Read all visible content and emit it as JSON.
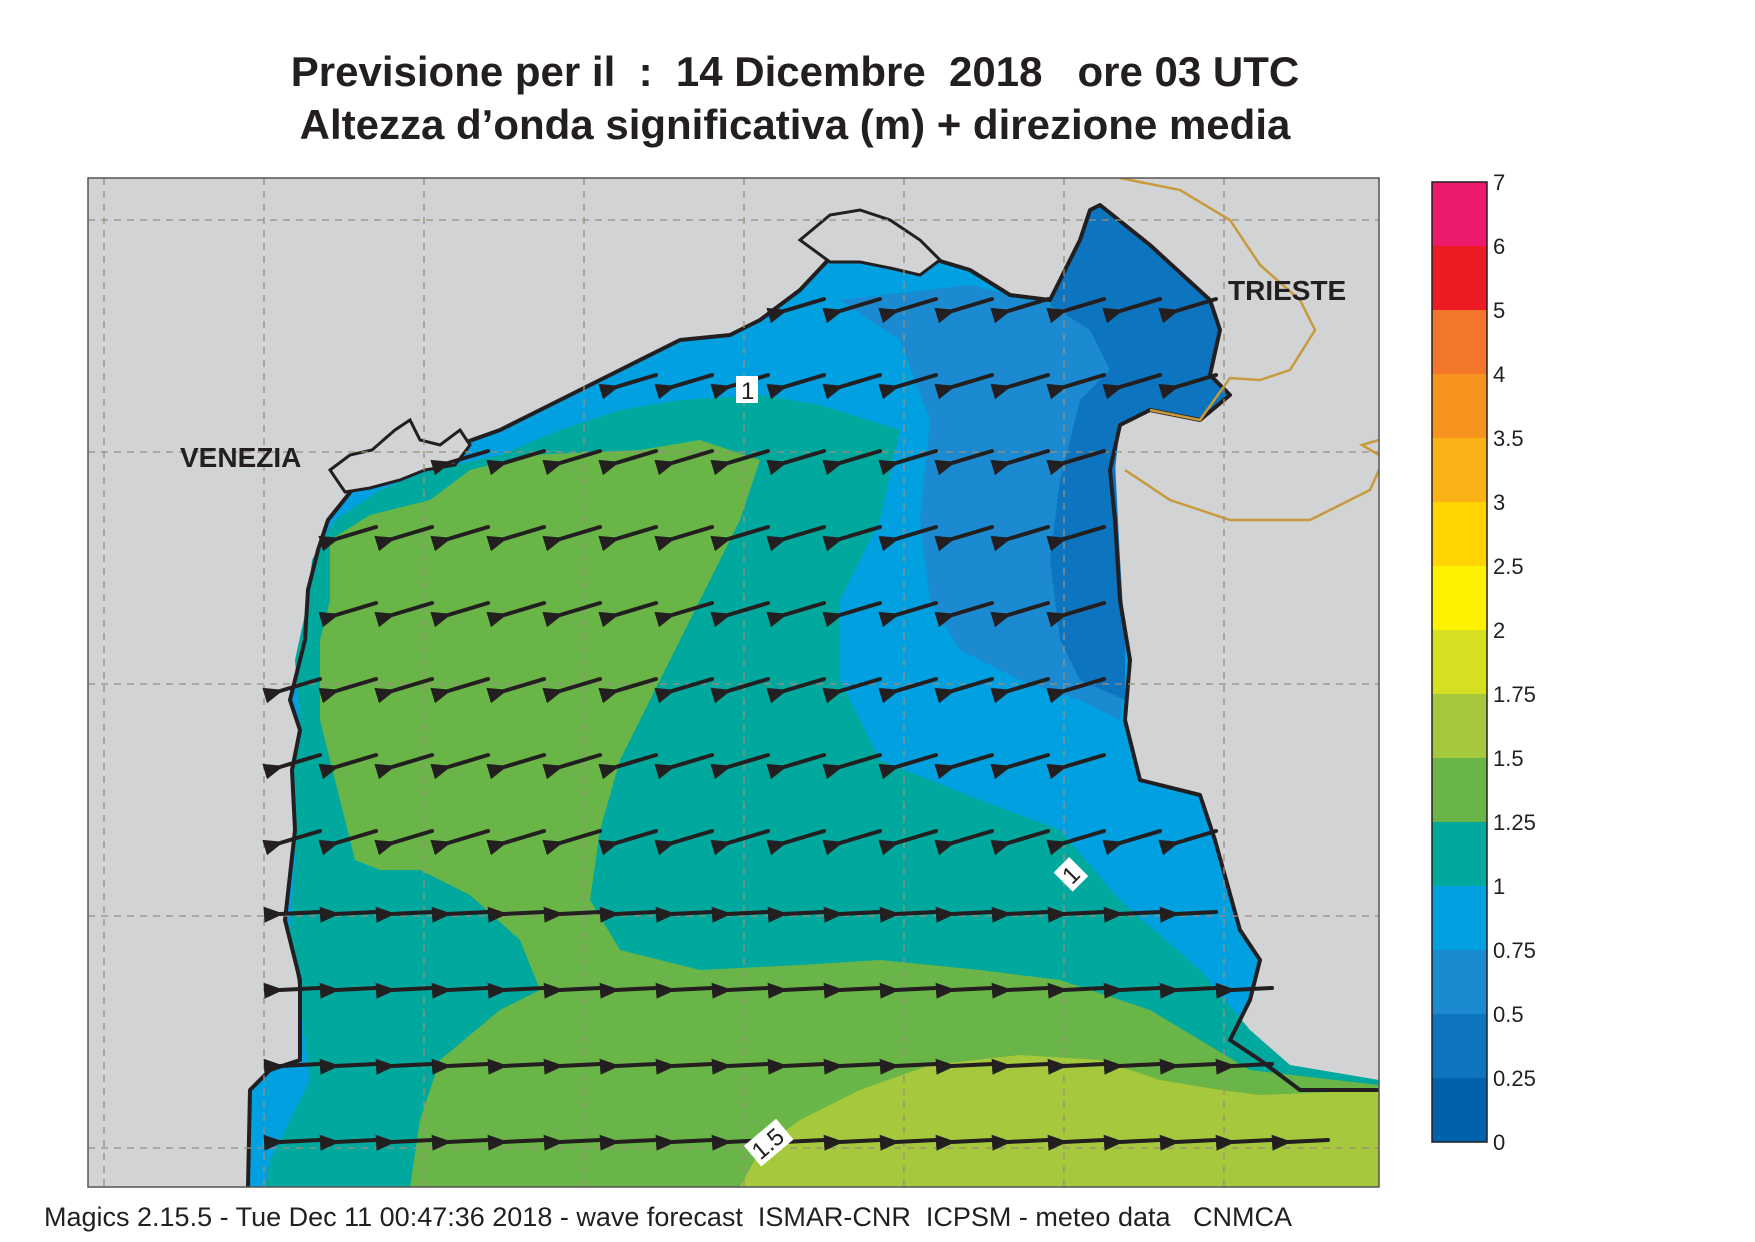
{
  "title": {
    "line1": "Previsione per il  :  14 Dicembre  2018   ore 03 UTC",
    "line2": "Altezza d’onda significativa (m) + direzione media"
  },
  "map": {
    "places": [
      "VENEZIA",
      "TRIESTE"
    ],
    "contour_labels": [
      "1",
      "1",
      "1.5"
    ],
    "colors": {
      "land": "#d1d3d4",
      "coast": "#231f20",
      "border": "#c89a3c",
      "grid": "#9a8f7e",
      "arrow": "#231f20"
    },
    "wave_direction": "west-southwest"
  },
  "colorbar": {
    "labels": [
      "7",
      "6",
      "5",
      "4",
      "3.5",
      "3",
      "2.5",
      "2",
      "1.75",
      "1.5",
      "1.25",
      "1",
      "0.75",
      "0.5",
      "0.25",
      "0"
    ],
    "colors": [
      "#ec1b6e",
      "#ed1c24",
      "#f4762a",
      "#f7941d",
      "#fbb216",
      "#ffd400",
      "#fff200",
      "#d7df23",
      "#a6c83d",
      "#6ab547",
      "#00a89d",
      "#00a0e1",
      "#1b8ad0",
      "#0d75bf",
      "#0061ad"
    ]
  },
  "footer": "Magics 2.15.5 - Tue Dec 11 00:47:36 2018 - wave forecast  ISMAR-CNR  ICPSM - meteo data   CNMCA"
}
